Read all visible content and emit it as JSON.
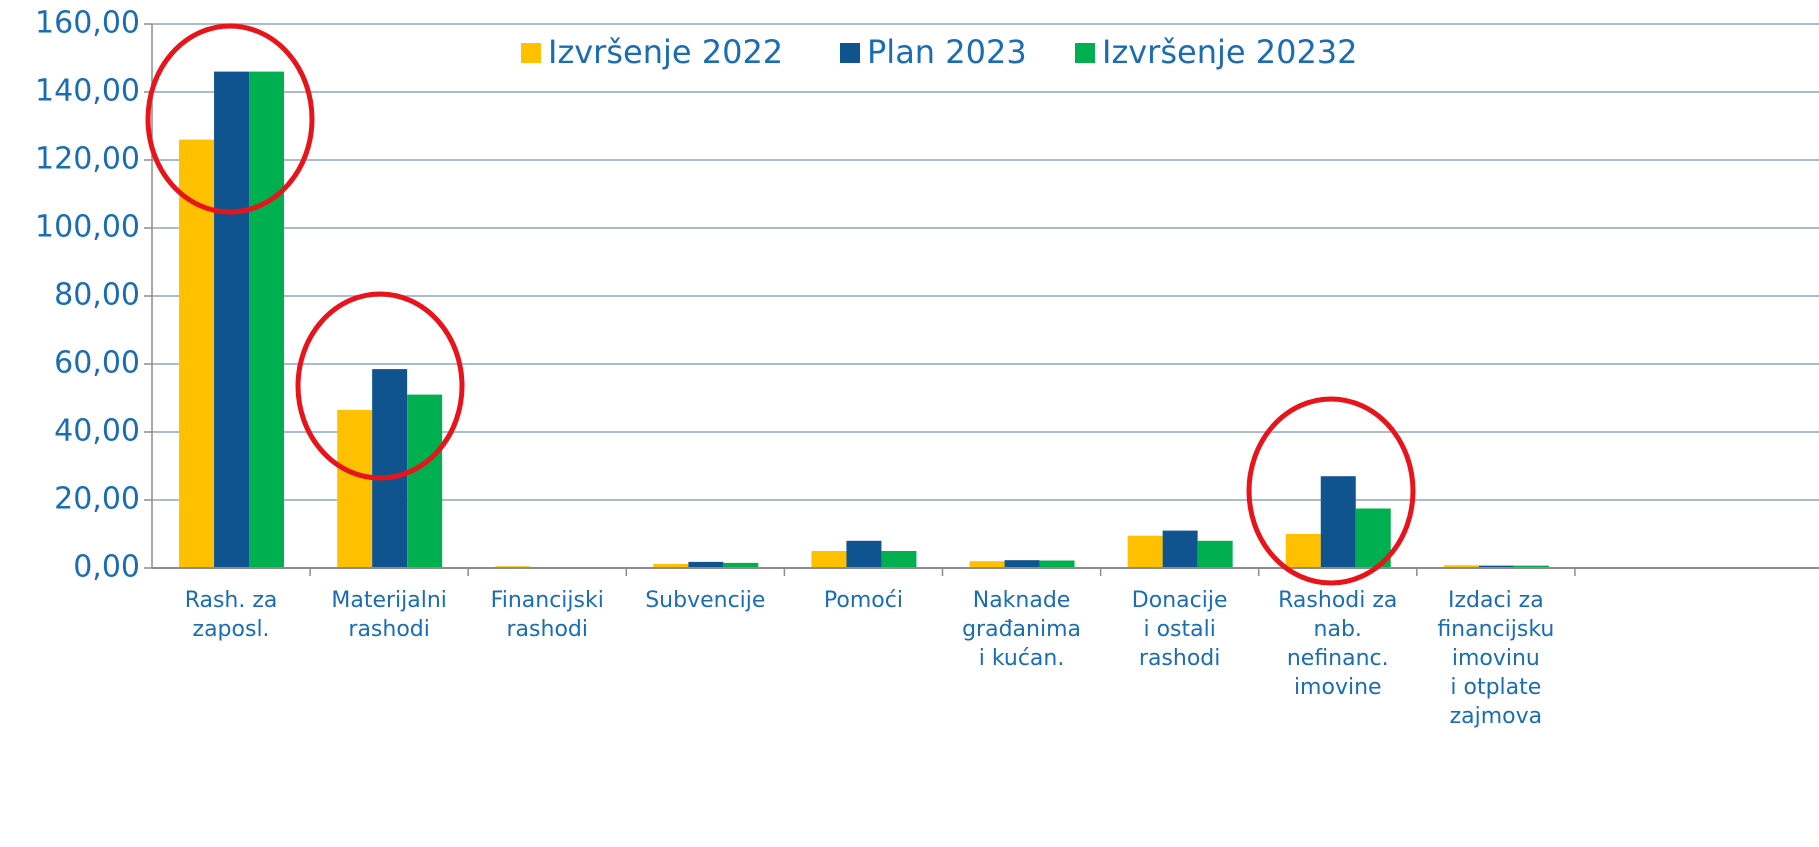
{
  "chart_data": {
    "type": "bar",
    "categories": [
      [
        "Rash. za",
        "zaposl."
      ],
      [
        "Materijalni",
        "rashodi"
      ],
      [
        "Financijski",
        "rashodi"
      ],
      [
        "Subvencije"
      ],
      [
        "Pomoći"
      ],
      [
        "Naknade",
        "građanima",
        "i kućan."
      ],
      [
        "Donacije",
        "i ostali",
        "rashodi"
      ],
      [
        "Rashodi za",
        "nab.",
        "nefinanc.",
        "imovine"
      ],
      [
        "Izdaci za",
        "financijsku",
        "imovinu",
        "i otplate",
        "zajmova"
      ]
    ],
    "series": [
      {
        "name": "Izvršenje 2022",
        "color": "#ffc000",
        "values": [
          126,
          46.5,
          0.5,
          1.2,
          5,
          2,
          9.5,
          10,
          0.8
        ]
      },
      {
        "name": "Plan 2023",
        "color": "#10548f",
        "values": [
          146,
          58.5,
          0.3,
          1.8,
          8,
          2.3,
          11,
          27,
          0.7
        ]
      },
      {
        "name": "Izvršenje 20232",
        "color": "#00b050",
        "values": [
          146,
          51,
          0.2,
          1.5,
          5,
          2.2,
          8,
          17.5,
          0.7
        ]
      }
    ],
    "ylim": [
      0,
      160
    ],
    "yticks": [
      {
        "value": 0,
        "label": "0,00"
      },
      {
        "value": 20,
        "label": "20,00"
      },
      {
        "value": 40,
        "label": "40,00"
      },
      {
        "value": 60,
        "label": "60,00"
      },
      {
        "value": 80,
        "label": "80,00"
      },
      {
        "value": 100,
        "label": "100,00"
      },
      {
        "value": 120,
        "label": "120,00"
      },
      {
        "value": 140,
        "label": "140,00"
      },
      {
        "value": 160,
        "label": "160,00"
      }
    ],
    "grid": true,
    "legend": "top"
  }
}
